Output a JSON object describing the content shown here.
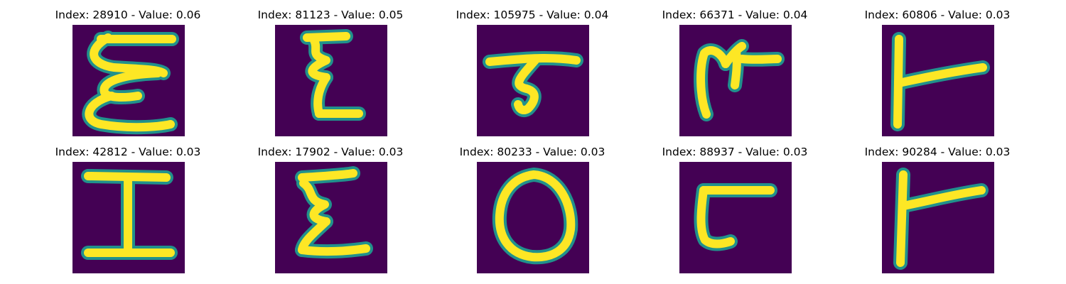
{
  "figure": {
    "panels": [
      {
        "title": "Index: 28910 - Value: 0.06",
        "glyph": "E"
      },
      {
        "title": "Index: 81123 - Value: 0.05",
        "glyph": "Z"
      },
      {
        "title": "Index: 105975 - Value: 0.04",
        "glyph": "T"
      },
      {
        "title": "Index: 66371 - Value: 0.04",
        "glyph": "M"
      },
      {
        "title": "Index: 60806 - Value: 0.03",
        "glyph": "F"
      },
      {
        "title": "Index: 42812 - Value: 0.03",
        "glyph": "I"
      },
      {
        "title": "Index: 17902 - Value: 0.03",
        "glyph": "Z"
      },
      {
        "title": "Index: 80233 - Value: 0.03",
        "glyph": "O"
      },
      {
        "title": "Index: 88937 - Value: 0.03",
        "glyph": "C"
      },
      {
        "title": "Index: 90284 - Value: 0.03",
        "glyph": "F"
      }
    ],
    "colors": {
      "background": "#440154",
      "stroke_edge": "#21918c",
      "stroke_core": "#fde725"
    }
  }
}
